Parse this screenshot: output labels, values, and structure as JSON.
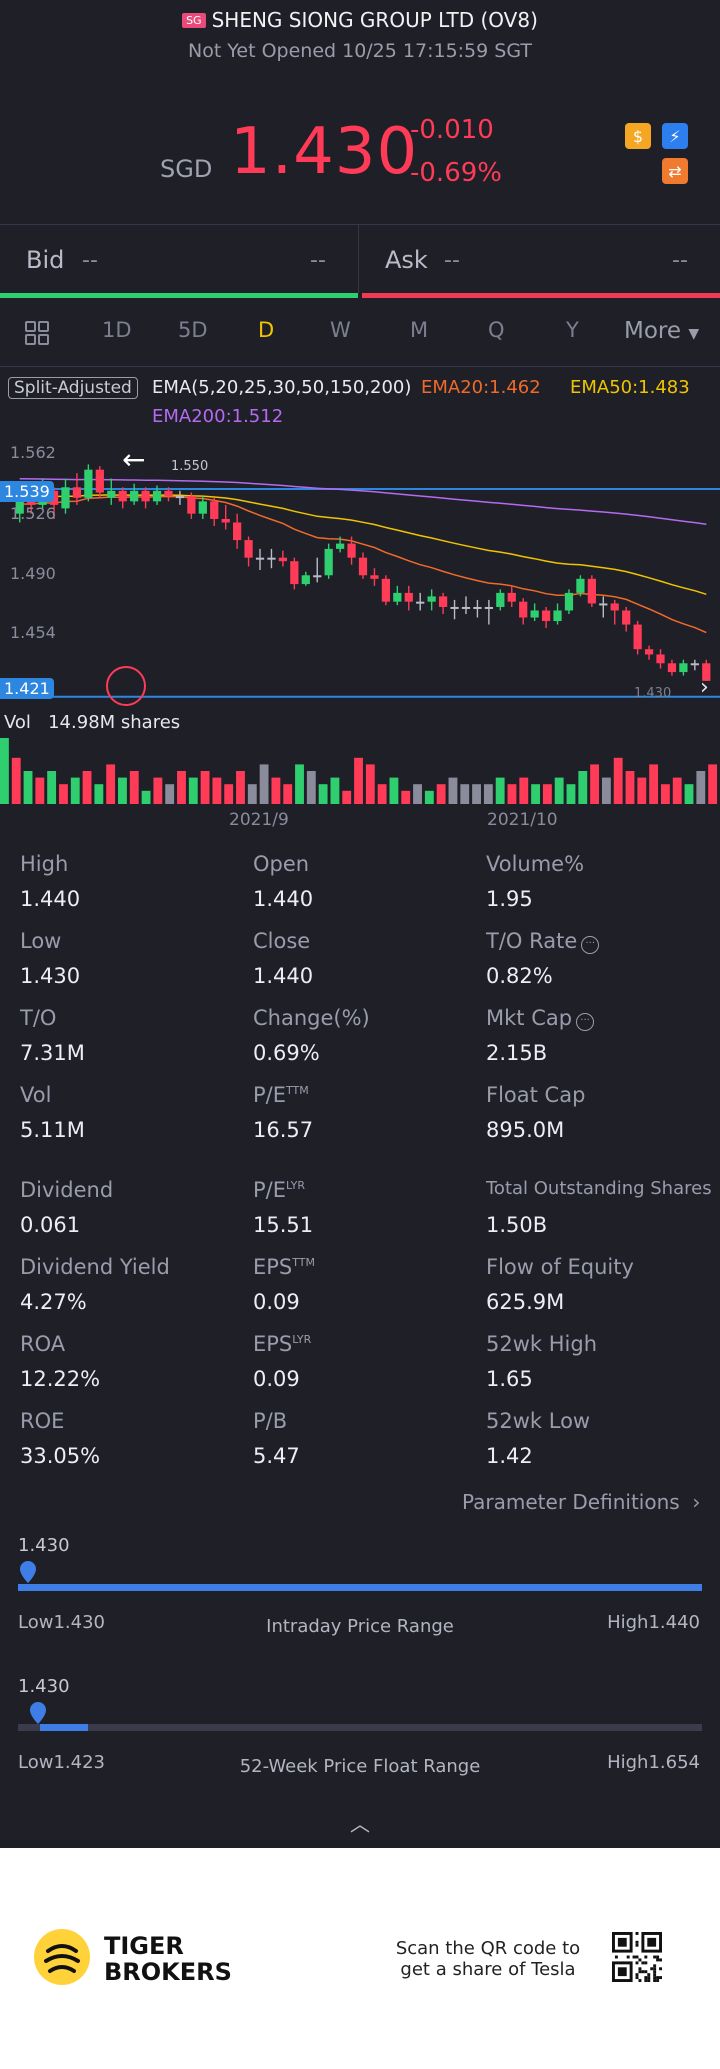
{
  "header": {
    "market_flag": "SG",
    "title": "SHENG SIONG GROUP LTD (OV8)",
    "status": "Not Yet Opened 10/25 17:15:59 SGT",
    "currency": "SGD",
    "price": "1.430",
    "change": "-0.010",
    "change_pct": "-0.69%"
  },
  "colors": {
    "down": "#ff3b57",
    "up": "#2fcf6f",
    "accent": "#3f7ee6",
    "active_tab": "#f0c400"
  },
  "quote": {
    "bid_label": "Bid",
    "bid_price": "--",
    "bid_size": "--",
    "ask_label": "Ask",
    "ask_price": "--",
    "ask_size": "--"
  },
  "tabs": [
    "1D",
    "5D",
    "D",
    "W",
    "M",
    "Q",
    "Y",
    "More"
  ],
  "active_tab": "D",
  "chart_data": {
    "type": "candlestick",
    "adjust_label": "Split-Adjusted",
    "ema_label": "EMA(5,20,25,30,50,150,200)",
    "ema20": "EMA20:1.462",
    "ema50": "EMA50:1.483",
    "ema200": "EMA200:1.512",
    "y_ticks": [
      "1.562",
      "1.526",
      "1.490",
      "1.454"
    ],
    "high_line": "1.539",
    "low_line": "1.421",
    "max_marker": "1.550",
    "min_marker": "1.430",
    "ylim": [
      1.418,
      1.568
    ],
    "volume_label": "Vol",
    "volume_value": "14.98M shares",
    "x_labels": [
      "2021/9",
      "2021/10"
    ],
    "candles": [
      [
        1.525,
        1.535,
        1.54,
        1.52
      ],
      [
        1.535,
        1.53,
        1.542,
        1.525
      ],
      [
        1.53,
        1.538,
        1.545,
        1.528
      ],
      [
        1.538,
        1.53,
        1.54,
        1.522
      ],
      [
        1.528,
        1.54,
        1.545,
        1.525
      ],
      [
        1.54,
        1.534,
        1.548,
        1.53
      ],
      [
        1.534,
        1.55,
        1.553,
        1.532
      ],
      [
        1.55,
        1.537,
        1.552,
        1.534
      ],
      [
        1.534,
        1.538,
        1.545,
        1.53
      ],
      [
        1.538,
        1.532,
        1.54,
        1.528
      ],
      [
        1.532,
        1.538,
        1.542,
        1.53
      ],
      [
        1.538,
        1.532,
        1.54,
        1.528
      ],
      [
        1.532,
        1.538,
        1.541,
        1.53
      ],
      [
        1.538,
        1.535,
        1.54,
        1.532
      ],
      [
        1.535,
        1.535,
        1.538,
        1.53
      ],
      [
        1.535,
        1.525,
        1.537,
        1.522
      ],
      [
        1.525,
        1.532,
        1.535,
        1.522
      ],
      [
        1.532,
        1.522,
        1.534,
        1.518
      ],
      [
        1.522,
        1.52,
        1.53,
        1.516
      ],
      [
        1.52,
        1.51,
        1.525,
        1.505
      ],
      [
        1.51,
        1.5,
        1.512,
        1.495
      ],
      [
        1.5,
        1.5,
        1.505,
        1.493
      ],
      [
        1.5,
        1.5,
        1.505,
        1.494
      ],
      [
        1.5,
        1.498,
        1.504,
        1.495
      ],
      [
        1.498,
        1.485,
        1.5,
        1.482
      ],
      [
        1.485,
        1.49,
        1.492,
        1.484
      ],
      [
        1.49,
        1.49,
        1.5,
        1.486
      ],
      [
        1.49,
        1.505,
        1.508,
        1.488
      ],
      [
        1.505,
        1.508,
        1.512,
        1.503
      ],
      [
        1.508,
        1.5,
        1.512,
        1.496
      ],
      [
        1.5,
        1.49,
        1.503,
        1.488
      ],
      [
        1.49,
        1.488,
        1.494,
        1.484
      ],
      [
        1.488,
        1.475,
        1.49,
        1.473
      ],
      [
        1.475,
        1.48,
        1.484,
        1.473
      ],
      [
        1.48,
        1.475,
        1.484,
        1.47
      ],
      [
        1.475,
        1.475,
        1.48,
        1.47
      ],
      [
        1.475,
        1.478,
        1.482,
        1.47
      ],
      [
        1.478,
        1.472,
        1.48,
        1.468
      ],
      [
        1.472,
        1.472,
        1.476,
        1.465
      ],
      [
        1.472,
        1.472,
        1.478,
        1.468
      ],
      [
        1.472,
        1.472,
        1.476,
        1.466
      ],
      [
        1.472,
        1.472,
        1.476,
        1.462
      ],
      [
        1.472,
        1.48,
        1.482,
        1.47
      ],
      [
        1.48,
        1.475,
        1.484,
        1.472
      ],
      [
        1.475,
        1.466,
        1.477,
        1.462
      ],
      [
        1.466,
        1.47,
        1.474,
        1.464
      ],
      [
        1.47,
        1.464,
        1.472,
        1.46
      ],
      [
        1.464,
        1.47,
        1.474,
        1.462
      ],
      [
        1.47,
        1.48,
        1.482,
        1.468
      ],
      [
        1.48,
        1.488,
        1.49,
        1.478
      ],
      [
        1.488,
        1.474,
        1.49,
        1.472
      ],
      [
        1.474,
        1.474,
        1.478,
        1.466
      ],
      [
        1.474,
        1.47,
        1.476,
        1.462
      ],
      [
        1.47,
        1.462,
        1.472,
        1.458
      ],
      [
        1.462,
        1.448,
        1.464,
        1.445
      ],
      [
        1.448,
        1.445,
        1.45,
        1.442
      ],
      [
        1.445,
        1.44,
        1.448,
        1.437
      ],
      [
        1.44,
        1.435,
        1.442,
        1.433
      ],
      [
        1.435,
        1.44,
        1.442,
        1.433
      ],
      [
        1.44,
        1.44,
        1.442,
        1.436
      ],
      [
        1.44,
        1.43,
        1.442,
        1.43
      ]
    ],
    "volumes": [
      10,
      7,
      5,
      4,
      5,
      3,
      4,
      5,
      3,
      6,
      4,
      5,
      2,
      4,
      3,
      5,
      4,
      5,
      4,
      3,
      5,
      3,
      6,
      4,
      3,
      6,
      5,
      3,
      4,
      2,
      7,
      6,
      3,
      4,
      2,
      3,
      2,
      3,
      4,
      3,
      3,
      3,
      4,
      3,
      4,
      3,
      3,
      4,
      3,
      5,
      6,
      4,
      7,
      5,
      4,
      6,
      3,
      4,
      3,
      5,
      6
    ]
  },
  "stats": [
    {
      "label": "High",
      "value": "1.440"
    },
    {
      "label": "Open",
      "value": "1.440"
    },
    {
      "label": "Volume%",
      "value": "1.95"
    },
    {
      "label": "Low",
      "value": "1.430"
    },
    {
      "label": "Close",
      "value": "1.440"
    },
    {
      "label": "T/O Rate",
      "value": "0.82%"
    },
    {
      "label": "T/O",
      "value": "7.31M"
    },
    {
      "label": "Change(%)",
      "value": "0.69%"
    },
    {
      "label": "Mkt Cap",
      "value": "2.15B"
    },
    {
      "label": "Vol",
      "value": "5.11M"
    },
    {
      "label": "P/E",
      "sup": "TTM",
      "value": "16.57"
    },
    {
      "label": "Float Cap",
      "value": "895.0M"
    },
    {
      "label": "Dividend",
      "value": "0.061"
    },
    {
      "label": "P/E",
      "sup": "LYR",
      "value": "15.51"
    },
    {
      "label": "Total Outstanding Shares",
      "value": "1.50B"
    },
    {
      "label": "Dividend Yield",
      "value": "4.27%"
    },
    {
      "label": "EPS",
      "sup": "TTM",
      "value": "0.09"
    },
    {
      "label": "Flow of Equity",
      "value": "625.9M"
    },
    {
      "label": "ROA",
      "value": "12.22%"
    },
    {
      "label": "EPS",
      "sup": "LYR",
      "value": "0.09"
    },
    {
      "label": "52wk High",
      "value": "1.65"
    },
    {
      "label": "ROE",
      "value": "33.05%"
    },
    {
      "label": "P/B",
      "value": "5.47"
    },
    {
      "label": "52wk Low",
      "value": "1.42"
    }
  ],
  "param_link": "Parameter Definitions",
  "intraday": {
    "current": "1.430",
    "low": "Low1.430",
    "high": "High1.440",
    "caption": "Intraday Price Range",
    "fraction": 0.0
  },
  "week52": {
    "current": "1.430",
    "low": "Low1.423",
    "high": "High1.654",
    "caption": "52-Week Price Float Range",
    "fraction": 0.03
  },
  "footer": {
    "brand_line1": "TIGER",
    "brand_line2": "BROKERS",
    "qr_line1": "Scan the QR code to",
    "qr_line2": "get a share of Tesla"
  }
}
